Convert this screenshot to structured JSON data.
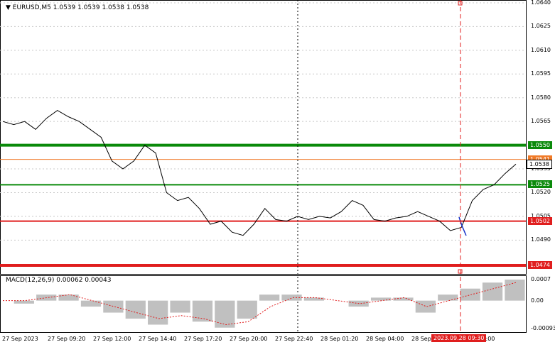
{
  "header": {
    "symbol_text": "EURUSD,M5  1.0539 1.0539 1.0538 1.0538",
    "dropdown_icon": "triangle-down-icon"
  },
  "macd": {
    "label": "MACD(12,26,9) 0.00062 0.00043"
  },
  "price_axis": {
    "ticks": [
      "1.0640",
      "1.0625",
      "1.0610",
      "1.0595",
      "1.0580",
      "1.0565",
      "1.0535",
      "1.0520",
      "1.0505",
      "1.0490"
    ],
    "macd_ticks": [
      "0.0007",
      "0.00",
      "-0.00093"
    ]
  },
  "levels": [
    {
      "label": "1.0550",
      "price": 1.055,
      "color": "#0a8a0a"
    },
    {
      "label": "1.0541",
      "price": 1.0541,
      "color": "#f07a28"
    },
    {
      "label": "1.0538",
      "price": 1.0538,
      "color": "#000000"
    },
    {
      "label": "1.0525",
      "price": 1.0525,
      "color": "#0a8a0a"
    },
    {
      "label": "1.0502",
      "price": 1.0502,
      "color": "#e01e1e"
    },
    {
      "label": "1.0474",
      "price": 1.0474,
      "color": "#e01e1e"
    }
  ],
  "time_axis": {
    "labels": [
      "27 Sep 2023",
      "27 Sep 09:20",
      "27 Sep 12:00",
      "27 Sep 14:40",
      "27 Sep 17:20",
      "27 Sep 20:00",
      "27 Sep 22:40",
      "28 Sep 01:20",
      "28 Sep 04:00",
      "28 Sep",
      "28 Sep 12:00"
    ],
    "cursor_label": "2023.09.28 09:30"
  },
  "colors": {
    "price_line": "#000000",
    "buy_level": "#0a8a0a",
    "sell_level": "#e01e1e",
    "macd_hist": "#c0c0c0",
    "macd_signal": "#e01e1e",
    "cursor": "#e01e1e"
  },
  "chart_data": {
    "type": "line",
    "title": "EURUSD,M5",
    "ylim": [
      1.0474,
      1.064
    ],
    "series": [
      {
        "name": "EURUSD",
        "values": [
          1.0565,
          1.0563,
          1.0565,
          1.056,
          1.0567,
          1.0572,
          1.0568,
          1.0565,
          1.056,
          1.0555,
          1.054,
          1.0535,
          1.054,
          1.055,
          1.0545,
          1.052,
          1.0515,
          1.0517,
          1.051,
          1.05,
          1.0502,
          1.0495,
          1.0493,
          1.05,
          1.051,
          1.0503,
          1.0502,
          1.0505,
          1.0503,
          1.0505,
          1.0504,
          1.0508,
          1.0515,
          1.0512,
          1.0503,
          1.0502,
          1.0504,
          1.0505,
          1.0508,
          1.0505,
          1.0502,
          1.0496,
          1.0498,
          1.0515,
          1.0522,
          1.0525,
          1.0532,
          1.0538
        ]
      }
    ],
    "macd": {
      "values": [
        0.0,
        -0.0001,
        0.0002,
        0.0002,
        -0.0002,
        -0.0004,
        -0.0006,
        -0.0008,
        -0.0004,
        -0.0007,
        -0.0009,
        -0.0006,
        0.0002,
        0.0002,
        0.0001,
        0.0,
        -0.0002,
        0.0001,
        0.0001,
        -0.0004,
        0.0002,
        0.0004,
        0.0006,
        0.0007
      ],
      "signal": [
        0.0,
        0.0,
        0.0001,
        0.0002,
        0.0,
        -0.0002,
        -0.0004,
        -0.0006,
        -0.0005,
        -0.0006,
        -0.0008,
        -0.0007,
        -0.0002,
        0.0001,
        0.0001,
        0.0,
        -0.0001,
        0.0,
        0.0001,
        -0.0002,
        0.0,
        0.0002,
        0.0004,
        0.0006
      ],
      "ylim": [
        -0.00093,
        0.0007
      ]
    }
  }
}
